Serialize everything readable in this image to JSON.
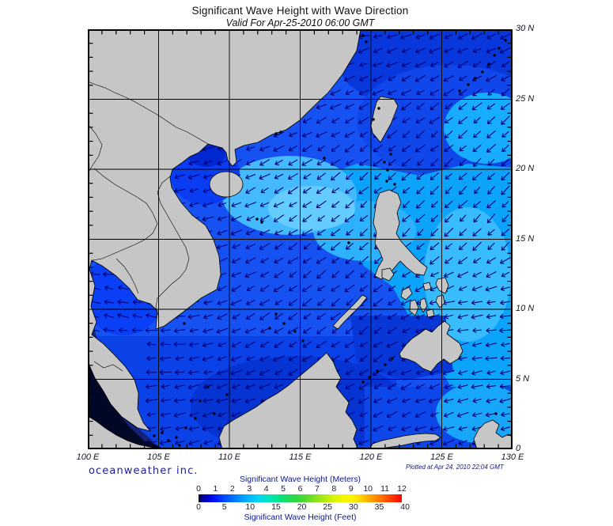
{
  "header": {
    "title": "Significant Wave Height with Wave Direction",
    "subtitle": "Valid For Apr-25-2010 06:00 GMT"
  },
  "map": {
    "lat_labels": [
      "30 N",
      "25 N",
      "20 N",
      "15 N",
      "10 N",
      "5 N",
      "0"
    ],
    "lon_labels": [
      "100 E",
      "105 E",
      "110 E",
      "115 E",
      "120 E",
      "125 E",
      "130 E"
    ]
  },
  "footer": {
    "credit": "oceanweather inc.",
    "plotted": "Plotted at Apr 24, 2010 22:04 GMT"
  },
  "legend": {
    "title_meters": "Significant Wave Height (Meters)",
    "title_feet": "Significant Wave Height (Feet)",
    "meters_ticks": [
      0,
      1,
      2,
      3,
      4,
      5,
      6,
      7,
      8,
      9,
      10,
      11,
      12
    ],
    "feet_ticks": [
      0,
      5,
      10,
      15,
      20,
      25,
      30,
      35,
      40
    ],
    "max_meters": 12,
    "feet_per_meter": 0.3048,
    "gradient": [
      [
        "#000000",
        0
      ],
      [
        "#000090",
        0.015
      ],
      [
        "#0000d8",
        0.05
      ],
      [
        "#0018ff",
        0.083
      ],
      [
        "#0048ff",
        0.125
      ],
      [
        "#0070ff",
        0.167
      ],
      [
        "#0098ff",
        0.21
      ],
      [
        "#00b8ff",
        0.25
      ],
      [
        "#00d4f4",
        0.292
      ],
      [
        "#00e2c8",
        0.333
      ],
      [
        "#00e4a0",
        0.375
      ],
      [
        "#10e070",
        0.417
      ],
      [
        "#28da52",
        0.458
      ],
      [
        "#3cd83c",
        0.5
      ],
      [
        "#64dc28",
        0.542
      ],
      [
        "#8ce41c",
        0.583
      ],
      [
        "#b4ec10",
        0.625
      ],
      [
        "#d8f408",
        0.667
      ],
      [
        "#f0f800",
        0.708
      ],
      [
        "#fff400",
        0.75
      ],
      [
        "#ffd800",
        0.792
      ],
      [
        "#ffb000",
        0.833
      ],
      [
        "#ff8800",
        0.875
      ],
      [
        "#ff5c00",
        0.917
      ],
      [
        "#ff3000",
        0.958
      ],
      [
        "#ff0000",
        1
      ]
    ]
  },
  "colors": {
    "land": "#c6c6c6",
    "coast": "#000000",
    "arrow": "#000078",
    "grid": "#000000",
    "water_base": "#1652f2",
    "water_dark_ne": "#0838dc",
    "water_mid_ne": "#0f47ea",
    "water_cyan": "#0ca4fa",
    "water_cyan_bright": "#38bcfd",
    "water_cyan_bright2": "#2fb2fc",
    "water_cyan_ryukyu": "#18acff",
    "water_cyan_hainan": "#45baff",
    "water_cyan_hainan2": "#65ccfe",
    "water_tonkin": "#0a3cf2",
    "water_tonkin_dark": "#0028d0",
    "water_south": "#0b42e8",
    "water_south_dark": "#0534d2",
    "water_gulf_thailand": "#0940f5",
    "water_sulu": "#0737d6",
    "water_celebes": "#0d47ea",
    "water_celebes_cyan": "#18a6f8",
    "water_andaman": "#000826",
    "water_andaman2": "#14227a"
  },
  "chart_data": {
    "type": "heatmap",
    "title": "Significant Wave Height with Wave Direction",
    "valid_time": "Apr-25-2010 06:00 GMT",
    "plotted_time": "Apr 24, 2010 22:04 GMT",
    "lon_range_deg_e": [
      100,
      130
    ],
    "lat_range_deg_n": [
      0,
      30
    ],
    "lon_ticks_deg_e": [
      100,
      105,
      110,
      115,
      120,
      125,
      130
    ],
    "lat_ticks_deg_n": [
      0,
      5,
      10,
      15,
      20,
      25,
      30
    ],
    "grid_step_deg": 5,
    "colorbar_range_m": [
      0,
      12
    ],
    "colorbar_range_ft": [
      0,
      40
    ],
    "wave_height_m_grid": [
      [
        null,
        null,
        null,
        1.2,
        1.0,
        1.2,
        1.5
      ],
      [
        null,
        null,
        null,
        1.5,
        1.8,
        1.5,
        2.0
      ],
      [
        null,
        null,
        2.5,
        2.0,
        2.2,
        2.5,
        2.8
      ],
      [
        null,
        1.5,
        1.8,
        1.8,
        2.0,
        2.5,
        2.5
      ],
      [
        null,
        1.5,
        1.5,
        1.5,
        1.2,
        2.5,
        2.8
      ],
      [
        0.3,
        1.2,
        1.2,
        1.2,
        1.0,
        1.5,
        2.5
      ],
      [
        0.2,
        null,
        1.0,
        1.0,
        1.2,
        1.2,
        1.8
      ]
    ],
    "wave_direction_toward_deg": [
      [
        262,
        262,
        260,
        258,
        255,
        250,
        246
      ],
      [
        264,
        260,
        254,
        248,
        242,
        236,
        230
      ],
      [
        268,
        258,
        246,
        238,
        230,
        227,
        225
      ],
      [
        272,
        262,
        250,
        236,
        228,
        225,
        224
      ],
      [
        286,
        278,
        242,
        233,
        230,
        258,
        266
      ],
      [
        272,
        264,
        252,
        242,
        238,
        252,
        262
      ],
      [
        260,
        256,
        252,
        248,
        246,
        250,
        256
      ]
    ]
  }
}
